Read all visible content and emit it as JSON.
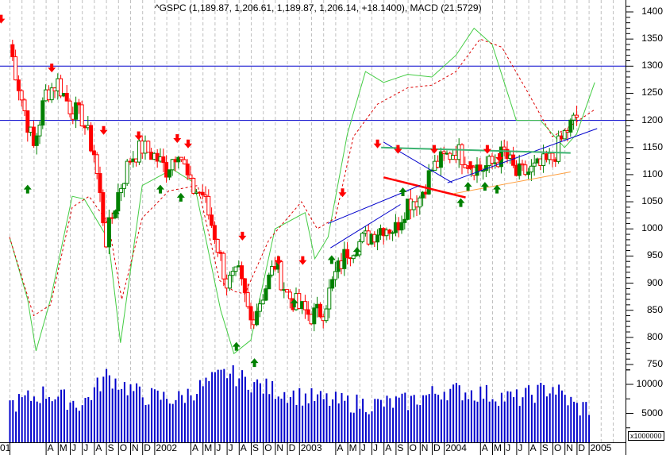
{
  "chart_data": {
    "type": "candlestick",
    "title": "^GSPC (1,189.87, 1,206.61, 1,189.87, 1,206.14, +18.1400), MACD (21.5729)",
    "symbol": "^GSPC",
    "last_bar": {
      "open": 1189.87,
      "high": 1206.61,
      "low": 1189.87,
      "close": 1206.14,
      "change": 18.14
    },
    "indicator": {
      "name": "MACD",
      "value": 21.5729
    },
    "frequency": "weekly",
    "x_range": [
      "2001-01",
      "2005-01"
    ],
    "x_tick_labels": [
      "01",
      "A",
      "M",
      "J",
      "J",
      "A",
      "S",
      "O",
      "N",
      "D",
      "2002",
      "A",
      "M",
      "J",
      "J",
      "A",
      "S",
      "O",
      "N",
      "D",
      "2003",
      "A",
      "M",
      "J",
      "J",
      "A",
      "S",
      "O",
      "N",
      "D",
      "2004",
      "A",
      "M",
      "J",
      "J",
      "A",
      "S",
      "O",
      "N",
      "D",
      "2005"
    ],
    "price_axis": {
      "ticks": [
        1400,
        1350,
        1300,
        1250,
        1200,
        1150,
        1100,
        1050,
        1000,
        950,
        900,
        850,
        800,
        750
      ],
      "ylim": [
        720,
        1420
      ],
      "position": "right"
    },
    "volume_axis": {
      "ticks": [
        10000,
        5000
      ],
      "unit_label": "x1000000"
    },
    "horizontal_lines": [
      {
        "value": 1300,
        "color": "#0000cc"
      },
      {
        "value": 1200,
        "color": "#0000cc"
      }
    ],
    "grid": {
      "vertical_dashed_monthly": true,
      "color": "#c0c0c0"
    },
    "colors": {
      "up": "#008000",
      "down": "#ff0000",
      "volume": "#0000cc",
      "osc_line": "#44cc44",
      "signal_line": "#dd0000",
      "trendline": "#0000cc",
      "support": "#ff0000",
      "resistance": "#3cb371",
      "uptrend_orange": "#ffa040"
    },
    "price_path_approx": [
      {
        "date": "2001-01",
        "close": 1340
      },
      {
        "date": "2001-02",
        "close": 1240
      },
      {
        "date": "2001-03",
        "close": 1150
      },
      {
        "date": "2001-04",
        "close": 1250
      },
      {
        "date": "2001-05",
        "close": 1270
      },
      {
        "date": "2001-06",
        "close": 1225
      },
      {
        "date": "2001-07",
        "close": 1205
      },
      {
        "date": "2001-08",
        "close": 1140
      },
      {
        "date": "2001-09",
        "close": 980
      },
      {
        "date": "2001-10",
        "close": 1065
      },
      {
        "date": "2001-11",
        "close": 1130
      },
      {
        "date": "2001-12",
        "close": 1150
      },
      {
        "date": "2002-01",
        "close": 1135
      },
      {
        "date": "2002-02",
        "close": 1110
      },
      {
        "date": "2002-03",
        "close": 1150
      },
      {
        "date": "2002-04",
        "close": 1075
      },
      {
        "date": "2002-05",
        "close": 1065
      },
      {
        "date": "2002-06",
        "close": 990
      },
      {
        "date": "2002-07",
        "close": 900
      },
      {
        "date": "2002-08",
        "close": 915
      },
      {
        "date": "2002-09",
        "close": 830
      },
      {
        "date": "2002-10",
        "close": 880
      },
      {
        "date": "2002-11",
        "close": 935
      },
      {
        "date": "2002-12",
        "close": 880
      },
      {
        "date": "2003-01",
        "close": 855
      },
      {
        "date": "2003-02",
        "close": 840
      },
      {
        "date": "2003-03",
        "close": 850
      },
      {
        "date": "2003-04",
        "close": 915
      },
      {
        "date": "2003-05",
        "close": 960
      },
      {
        "date": "2003-06",
        "close": 975
      },
      {
        "date": "2003-07",
        "close": 990
      },
      {
        "date": "2003-08",
        "close": 1005
      },
      {
        "date": "2003-09",
        "close": 1000
      },
      {
        "date": "2003-10",
        "close": 1050
      },
      {
        "date": "2003-11",
        "close": 1058
      },
      {
        "date": "2003-12",
        "close": 1110
      },
      {
        "date": "2004-01",
        "close": 1130
      },
      {
        "date": "2004-02",
        "close": 1145
      },
      {
        "date": "2004-03",
        "close": 1125
      },
      {
        "date": "2004-04",
        "close": 1110
      },
      {
        "date": "2004-05",
        "close": 1120
      },
      {
        "date": "2004-06",
        "close": 1140
      },
      {
        "date": "2004-07",
        "close": 1100
      },
      {
        "date": "2004-08",
        "close": 1105
      },
      {
        "date": "2004-09",
        "close": 1115
      },
      {
        "date": "2004-10",
        "close": 1130
      },
      {
        "date": "2004-11",
        "close": 1175
      },
      {
        "date": "2004-12",
        "close": 1206
      }
    ],
    "volume_approx_millions": [
      {
        "date": "2001-01",
        "value": 6500
      },
      {
        "date": "2001-04",
        "value": 8500
      },
      {
        "date": "2001-07",
        "value": 6500
      },
      {
        "date": "2001-09",
        "value": 11500
      },
      {
        "date": "2001-12",
        "value": 8000
      },
      {
        "date": "2002-03",
        "value": 7500
      },
      {
        "date": "2002-07",
        "value": 12000
      },
      {
        "date": "2002-10",
        "value": 9500
      },
      {
        "date": "2003-01",
        "value": 8000
      },
      {
        "date": "2003-04",
        "value": 7000
      },
      {
        "date": "2003-07",
        "value": 6500
      },
      {
        "date": "2003-10",
        "value": 7000
      },
      {
        "date": "2004-01",
        "value": 9000
      },
      {
        "date": "2004-04",
        "value": 8500
      },
      {
        "date": "2004-07",
        "value": 7500
      },
      {
        "date": "2004-10",
        "value": 9500
      },
      {
        "date": "2004-12",
        "value": 6000
      }
    ],
    "annotations": [
      "red down arrows at swing highs",
      "green up arrows at swing lows",
      "rising channel Aug–Dec 2003",
      "falling wedge / triangle Apr–Aug 2004",
      "resistance band ~1145",
      "support line ~1090→1060"
    ]
  }
}
